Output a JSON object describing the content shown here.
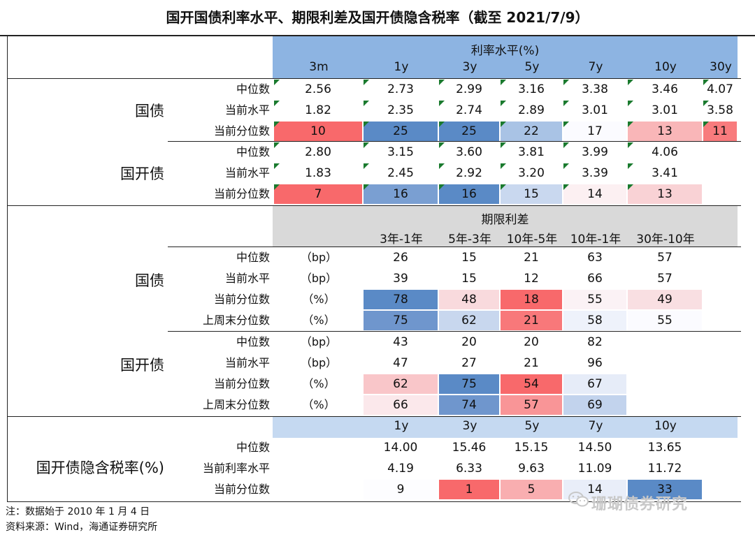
{
  "title": "国开国债利率水平、期限利差及国开债隐含税率（截至 2021/7/9）",
  "rates": {
    "header": "利率水平(%)",
    "tenors": [
      "3m",
      "1y",
      "3y",
      "5y",
      "7y",
      "10y",
      "30y"
    ],
    "groups": [
      {
        "name": "国债",
        "rows": [
          {
            "label": "中位数",
            "values": [
              "2.56",
              "2.73",
              "2.99",
              "3.16",
              "3.38",
              "3.46",
              "4.07"
            ]
          },
          {
            "label": "当前水平",
            "values": [
              "1.82",
              "2.35",
              "2.74",
              "2.89",
              "3.01",
              "3.01",
              "3.58"
            ]
          },
          {
            "label": "当前分位数",
            "values": [
              "10",
              "25",
              "25",
              "22",
              "17",
              "13",
              "11"
            ]
          }
        ]
      },
      {
        "name": "国开债",
        "rows": [
          {
            "label": "中位数",
            "values": [
              "2.80",
              "3.15",
              "3.60",
              "3.81",
              "3.99",
              "4.06",
              ""
            ]
          },
          {
            "label": "当前水平",
            "values": [
              "1.83",
              "2.45",
              "2.92",
              "3.20",
              "3.39",
              "3.41",
              ""
            ]
          },
          {
            "label": "当前分位数",
            "values": [
              "7",
              "16",
              "16",
              "15",
              "14",
              "13",
              ""
            ]
          }
        ]
      }
    ]
  },
  "spreads": {
    "header": "期限利差",
    "terms": [
      "3年-1年",
      "5年-3年",
      "10年-5年",
      "10年-1年",
      "30年-10年"
    ],
    "groups": [
      {
        "name": "国债",
        "rows": [
          {
            "label": "中位数",
            "unit": "（bp）",
            "values": [
              "26",
              "15",
              "21",
              "63",
              "57"
            ]
          },
          {
            "label": "当前水平",
            "unit": "（bp）",
            "values": [
              "39",
              "15",
              "12",
              "66",
              "57"
            ]
          },
          {
            "label": "当前分位数",
            "unit": "（%）",
            "values": [
              "78",
              "48",
              "18",
              "55",
              "49"
            ]
          },
          {
            "label": "上周末分位数",
            "unit": "（%）",
            "values": [
              "75",
              "62",
              "21",
              "58",
              "55"
            ]
          }
        ]
      },
      {
        "name": "国开债",
        "rows": [
          {
            "label": "中位数",
            "unit": "（bp）",
            "values": [
              "43",
              "20",
              "20",
              "82",
              ""
            ]
          },
          {
            "label": "当前水平",
            "unit": "（bp）",
            "values": [
              "47",
              "27",
              "21",
              "96",
              ""
            ]
          },
          {
            "label": "当前分位数",
            "unit": "（%）",
            "values": [
              "62",
              "75",
              "54",
              "67",
              ""
            ]
          },
          {
            "label": "上周末分位数",
            "unit": "（%）",
            "values": [
              "66",
              "74",
              "57",
              "69",
              ""
            ]
          }
        ]
      }
    ]
  },
  "tax": {
    "name": "国开债隐含税率(%)",
    "tenors": [
      "1y",
      "3y",
      "5y",
      "7y",
      "10y"
    ],
    "rows": [
      {
        "label": "中位数",
        "values": [
          "14.00",
          "15.46",
          "15.15",
          "14.50",
          "13.65"
        ]
      },
      {
        "label": "当前利率水平",
        "values": [
          "4.19",
          "6.33",
          "9.63",
          "11.09",
          "11.72"
        ]
      },
      {
        "label": "当前分位数",
        "values": [
          "9",
          "1",
          "5",
          "14",
          "33"
        ]
      }
    ]
  },
  "notes": {
    "note": "注：数据始于 2010 年 1 月 4 日",
    "source": "资料来源：Wind，海通证券研究所"
  },
  "watermark": "珊瑚债券研究",
  "colors": {
    "header_blue": "#8db4e2",
    "header_gray": "#d9d9d9",
    "header_lightblue": "#c5d9f1",
    "flag_green": "#1a7a2e"
  },
  "cell_colors": {
    "rates_gz_pct": [
      "#f8696b",
      "#5a8ac6",
      "#5a8ac6",
      "#a9c3e5",
      "#fbfbff",
      "#f9b6b8",
      "#f87b7d"
    ],
    "rates_gk_pct": [
      "#f8696b",
      "#7a9fd2",
      "#5a8ac6",
      "#c9d8ef",
      "#fcf0f2",
      "#f9d2d5",
      "#ffffff"
    ],
    "spr_gz_cur": [
      "#5a8ac6",
      "#f9dadd",
      "#f8696b",
      "#fbf2f5",
      "#f9dfe2"
    ],
    "spr_gz_last": [
      "#6f96cd",
      "#c8d7ee",
      "#f8787a",
      "#eef2fb",
      "#fbfbff"
    ],
    "spr_gk_cur": [
      "#f9c6c9",
      "#5a8ac6",
      "#f8696b",
      "#e6ecf8",
      "#ffffff"
    ],
    "spr_gk_last": [
      "#fbe8eb",
      "#6f96cd",
      "#f99597",
      "#c2d3ed",
      "#ffffff"
    ],
    "tax_pct": [
      "#fdfdff",
      "#f8696b",
      "#f9aeb0",
      "#e9eef9",
      "#5a8ac6"
    ]
  }
}
